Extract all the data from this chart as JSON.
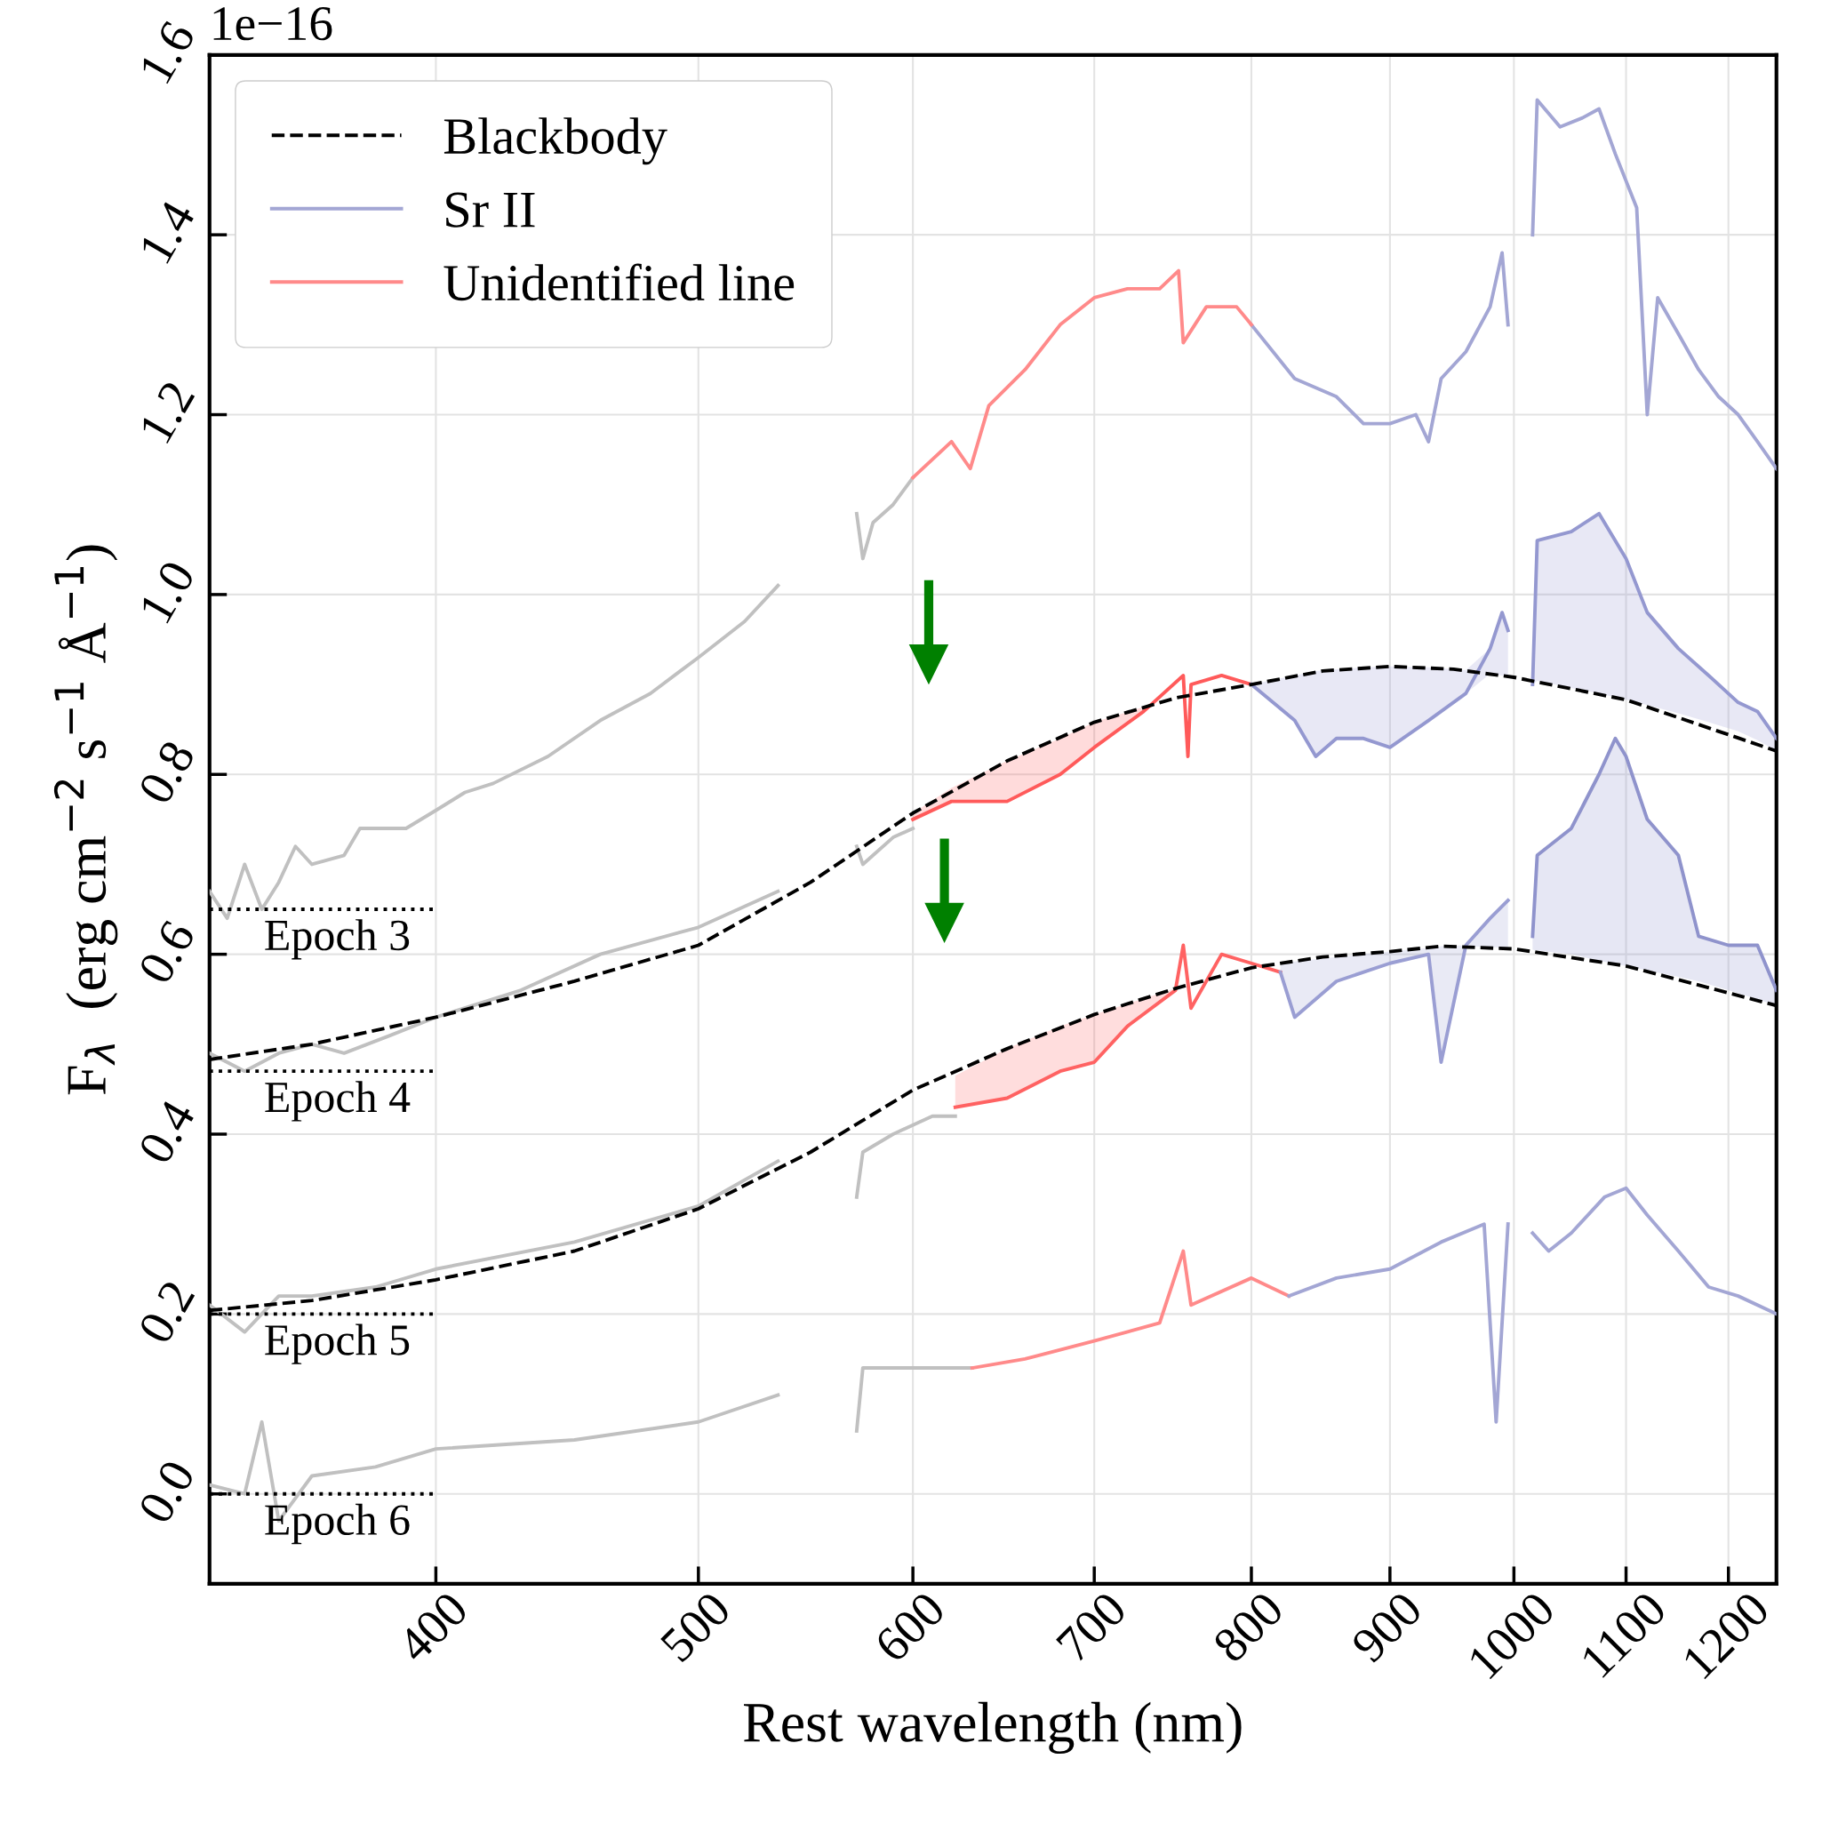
{
  "chart_data": {
    "type": "line",
    "xlabel": "Rest wavelength (nm)",
    "ylabel": "F$_{λ}$  (erg cm$^{−2}$ s$^{−1}$ Å$^{−1}$)",
    "log": "x",
    "grid": true,
    "legend": "top left",
    "line_style": "solid",
    "marker": "none",
    "xlim": [
      330,
      1250
    ],
    "xticks": [
      400,
      500,
      600,
      700,
      800,
      900,
      1000,
      1100,
      1200
    ],
    "ylim": [
      -0.1,
      1.6
    ],
    "yticks": [
      {
        "value": 0,
        "label": "0.0"
      },
      {
        "value": 0.2,
        "label": "0.2"
      },
      {
        "value": 0.4,
        "label": "0.4"
      },
      {
        "value": 0.6,
        "label": "0.6"
      },
      {
        "value": 0.8,
        "label": "0.8"
      },
      {
        "value": 1.0,
        "label": "1.0"
      },
      {
        "value": 1.2,
        "label": "1.2"
      },
      {
        "value": 1.4,
        "label": "1.4"
      },
      {
        "value": 1.6,
        "label": "1.6"
      }
    ],
    "series": [
      {
        "name": "Blackbody",
        "color": "#000000",
        "line_style": "dashed",
        "x": [
          330,
          360,
          400,
          450,
          500,
          550,
          600,
          650,
          700,
          750,
          800,
          850,
          900,
          950,
          1000,
          1100,
          1250
        ],
        "values": [
          0.483,
          0.5,
          0.53,
          0.57,
          0.61,
          0.68,
          0.757,
          0.815,
          0.858,
          0.885,
          0.9,
          0.915,
          0.92,
          0.917,
          0.908,
          0.883,
          0.826
        ]
      },
      {
        "color": "#000000",
        "line_style": "dashed",
        "x": [
          330,
          360,
          400,
          450,
          500,
          550,
          600,
          650,
          700,
          750,
          800,
          850,
          900,
          940,
          1000,
          1100,
          1250
        ],
        "values": [
          0.204,
          0.215,
          0.238,
          0.27,
          0.317,
          0.38,
          0.449,
          0.495,
          0.533,
          0.562,
          0.585,
          0.597,
          0.603,
          0.609,
          0.606,
          0.587,
          0.543
        ]
      },
      {
        "color": "#c0c0c0",
        "x": [
          330,
          335,
          340,
          345,
          350,
          355,
          360,
          370,
          375,
          390,
          400,
          410,
          420,
          440,
          460,
          480,
          500,
          520,
          535
        ],
        "values": [
          0.67,
          0.64,
          0.7,
          0.65,
          0.68,
          0.72,
          0.7,
          0.71,
          0.74,
          0.74,
          0.76,
          0.78,
          0.79,
          0.82,
          0.86,
          0.89,
          0.93,
          0.97,
          1.01
        ]
      },
      {
        "color": "#c0c0c0",
        "x": [
          572,
          575,
          580,
          590,
          600
        ],
        "values": [
          1.09,
          1.04,
          1.08,
          1.1,
          1.13
        ]
      },
      {
        "name": "Sr II",
        "color": "#a3a6d4",
        "x": [
          800,
          830,
          860,
          880,
          900,
          920,
          930,
          940,
          960,
          980,
          990,
          995
        ],
        "values": [
          1.3,
          1.24,
          1.22,
          1.19,
          1.19,
          1.2,
          1.17,
          1.24,
          1.27,
          1.32,
          1.38,
          1.3
        ]
      },
      {
        "name": "Unidentified line",
        "color": "#ff8a8a",
        "x": [
          600,
          620,
          630,
          640,
          660,
          680,
          700,
          720,
          740,
          752,
          755,
          770,
          790,
          800
        ],
        "values": [
          1.13,
          1.17,
          1.14,
          1.21,
          1.25,
          1.3,
          1.33,
          1.34,
          1.34,
          1.36,
          1.28,
          1.32,
          1.32,
          1.3
        ]
      },
      {
        "color": "#a3a6d4",
        "x": [
          1016,
          1020,
          1040,
          1060,
          1075,
          1090,
          1110,
          1120,
          1130,
          1150,
          1170,
          1190,
          1210,
          1230,
          1250
        ],
        "values": [
          1.4,
          1.55,
          1.52,
          1.53,
          1.54,
          1.49,
          1.43,
          1.2,
          1.33,
          1.29,
          1.25,
          1.22,
          1.2,
          1.17,
          1.14
        ]
      },
      {
        "color": "#c0c0c0",
        "x": [
          330,
          340,
          350,
          360,
          370,
          385,
          400,
          430,
          460,
          500,
          535
        ],
        "values": [
          0.49,
          0.47,
          0.49,
          0.5,
          0.49,
          0.51,
          0.53,
          0.56,
          0.6,
          0.63,
          0.67
        ]
      },
      {
        "color": "#c0c0c0",
        "x": [
          572,
          575,
          580,
          590,
          600
        ],
        "values": [
          0.72,
          0.7,
          0.71,
          0.73,
          0.74
        ]
      },
      {
        "color": "#ff5a5a",
        "x": [
          600,
          620,
          650,
          680,
          700,
          730,
          755,
          758,
          760,
          780,
          800
        ],
        "values": [
          0.75,
          0.77,
          0.77,
          0.8,
          0.83,
          0.87,
          0.91,
          0.82,
          0.9,
          0.91,
          0.9
        ],
        "lower": [
          0.75,
          0.77,
          0.77,
          0.8,
          0.83,
          0.87,
          null,
          null,
          null,
          null,
          null
        ],
        "upper": [
          0.757,
          0.785,
          0.815,
          0.84,
          0.858,
          0.875,
          null,
          null,
          null,
          null,
          null
        ]
      },
      {
        "color": "#9498d0",
        "x": [
          800,
          830,
          845,
          860,
          880,
          900,
          930,
          960,
          980,
          990,
          995
        ],
        "values": [
          0.9,
          0.86,
          0.82,
          0.84,
          0.84,
          0.83,
          0.86,
          0.89,
          0.94,
          0.98,
          0.96
        ],
        "lower": [
          0.9,
          0.86,
          0.82,
          0.84,
          0.84,
          0.83,
          0.86,
          0.89,
          0.912,
          0.91,
          0.909
        ],
        "upper": [
          0.9,
          0.91,
          0.915,
          0.917,
          0.919,
          0.92,
          0.919,
          0.916,
          0.94,
          0.98,
          0.96
        ]
      },
      {
        "color": "#9498d0",
        "x": [
          1016,
          1020,
          1050,
          1075,
          1100,
          1120,
          1150,
          1180,
          1210,
          1230,
          1250
        ],
        "values": [
          0.9,
          1.06,
          1.07,
          1.09,
          1.04,
          0.98,
          0.94,
          0.91,
          0.88,
          0.87,
          0.84
        ],
        "lower": [
          0.9,
          0.904,
          0.896,
          0.89,
          0.883,
          0.877,
          0.868,
          0.858,
          0.848,
          0.838,
          0.826
        ],
        "upper": [
          0.905,
          1.06,
          1.07,
          1.09,
          1.04,
          0.98,
          0.94,
          0.91,
          0.88,
          0.87,
          0.84
        ]
      },
      {
        "color": "#c0c0c0",
        "x": [
          330,
          340,
          350,
          360,
          380,
          400,
          450,
          500,
          535
        ],
        "values": [
          0.21,
          0.18,
          0.22,
          0.22,
          0.23,
          0.25,
          0.28,
          0.32,
          0.37
        ]
      },
      {
        "color": "#c0c0c0",
        "x": [
          572,
          575,
          590,
          610,
          622
        ],
        "values": [
          0.33,
          0.38,
          0.4,
          0.42,
          0.42
        ]
      },
      {
        "color": "#ff6262",
        "x": [
          622,
          650,
          680,
          700,
          720,
          750,
          755,
          760,
          780,
          800,
          820
        ],
        "values": [
          0.43,
          0.44,
          0.47,
          0.48,
          0.52,
          0.56,
          0.61,
          0.54,
          0.6,
          0.59,
          0.58
        ],
        "lower": [
          0.43,
          0.44,
          0.47,
          0.48,
          0.52,
          0.56,
          null,
          null,
          null,
          null,
          null
        ],
        "upper": [
          0.465,
          0.495,
          0.52,
          0.533,
          0.545,
          0.562,
          null,
          null,
          null,
          null,
          null
        ]
      },
      {
        "color": "#9a9ed3",
        "x": [
          820,
          830,
          860,
          900,
          930,
          940,
          960,
          980,
          995
        ],
        "values": [
          0.58,
          0.53,
          0.57,
          0.59,
          0.6,
          0.48,
          0.61,
          0.64,
          0.66
        ],
        "lower": [
          0.58,
          0.53,
          0.57,
          0.59,
          0.6,
          0.48,
          0.609,
          0.608,
          0.607
        ],
        "upper": [
          0.59,
          0.592,
          0.597,
          0.603,
          0.607,
          0.609,
          0.61,
          0.64,
          0.66
        ]
      },
      {
        "color": "#8f93cc",
        "x": [
          1016,
          1020,
          1050,
          1075,
          1090,
          1100,
          1120,
          1150,
          1170,
          1200,
          1230,
          1250
        ],
        "values": [
          0.62,
          0.71,
          0.74,
          0.8,
          0.84,
          0.82,
          0.75,
          0.71,
          0.62,
          0.61,
          0.61,
          0.56
        ],
        "lower": [
          0.605,
          0.604,
          0.6,
          0.593,
          0.589,
          0.587,
          0.582,
          0.575,
          0.57,
          0.56,
          0.55,
          0.543
        ],
        "upper": [
          0.62,
          0.71,
          0.74,
          0.8,
          0.84,
          0.82,
          0.75,
          0.71,
          0.62,
          0.61,
          0.61,
          0.56
        ]
      },
      {
        "color": "#c0c0c0",
        "x": [
          330,
          340,
          345,
          350,
          360,
          380,
          400,
          450,
          500,
          535
        ],
        "values": [
          0.01,
          0.0,
          0.08,
          -0.03,
          0.02,
          0.03,
          0.05,
          0.06,
          0.08,
          0.11
        ]
      },
      {
        "color": "#c0c0c0",
        "x": [
          572,
          575,
          600,
          631
        ],
        "values": [
          0.07,
          0.14,
          0.14,
          0.14
        ]
      },
      {
        "color": "#ff8a8a",
        "x": [
          631,
          660,
          700,
          740,
          755,
          760,
          800,
          826
        ],
        "values": [
          0.14,
          0.15,
          0.17,
          0.19,
          0.27,
          0.21,
          0.24,
          0.22
        ]
      },
      {
        "color": "#a3a6d4",
        "x": [
          826,
          860,
          900,
          940,
          975,
          985,
          995
        ],
        "values": [
          0.22,
          0.24,
          0.25,
          0.28,
          0.3,
          0.08,
          0.3
        ]
      },
      {
        "color": "#a3a6d4",
        "x": [
          1016,
          1030,
          1050,
          1080,
          1100,
          1120,
          1150,
          1180,
          1210,
          1250
        ],
        "values": [
          0.29,
          0.27,
          0.29,
          0.33,
          0.34,
          0.31,
          0.27,
          0.23,
          0.22,
          0.2
        ]
      },
      {
        "color": "#000000",
        "line_style": "dotted",
        "x": [
          330,
          400
        ],
        "values": [
          0.65,
          0.65
        ]
      },
      {
        "color": "#000000",
        "line_style": "dotted",
        "x": [
          330,
          400
        ],
        "values": [
          0.47,
          0.47
        ]
      },
      {
        "color": "#000000",
        "line_style": "dotted",
        "x": [
          330,
          400
        ],
        "values": [
          0.2,
          0.2
        ]
      },
      {
        "color": "#000000",
        "line_style": "dotted",
        "x": [
          330,
          400
        ],
        "values": [
          0.0,
          0.0
        ]
      }
    ],
    "annotations": [
      "1e−16",
      "Epoch 3",
      "Epoch 4",
      "Epoch 5",
      "Epoch 6"
    ]
  }
}
